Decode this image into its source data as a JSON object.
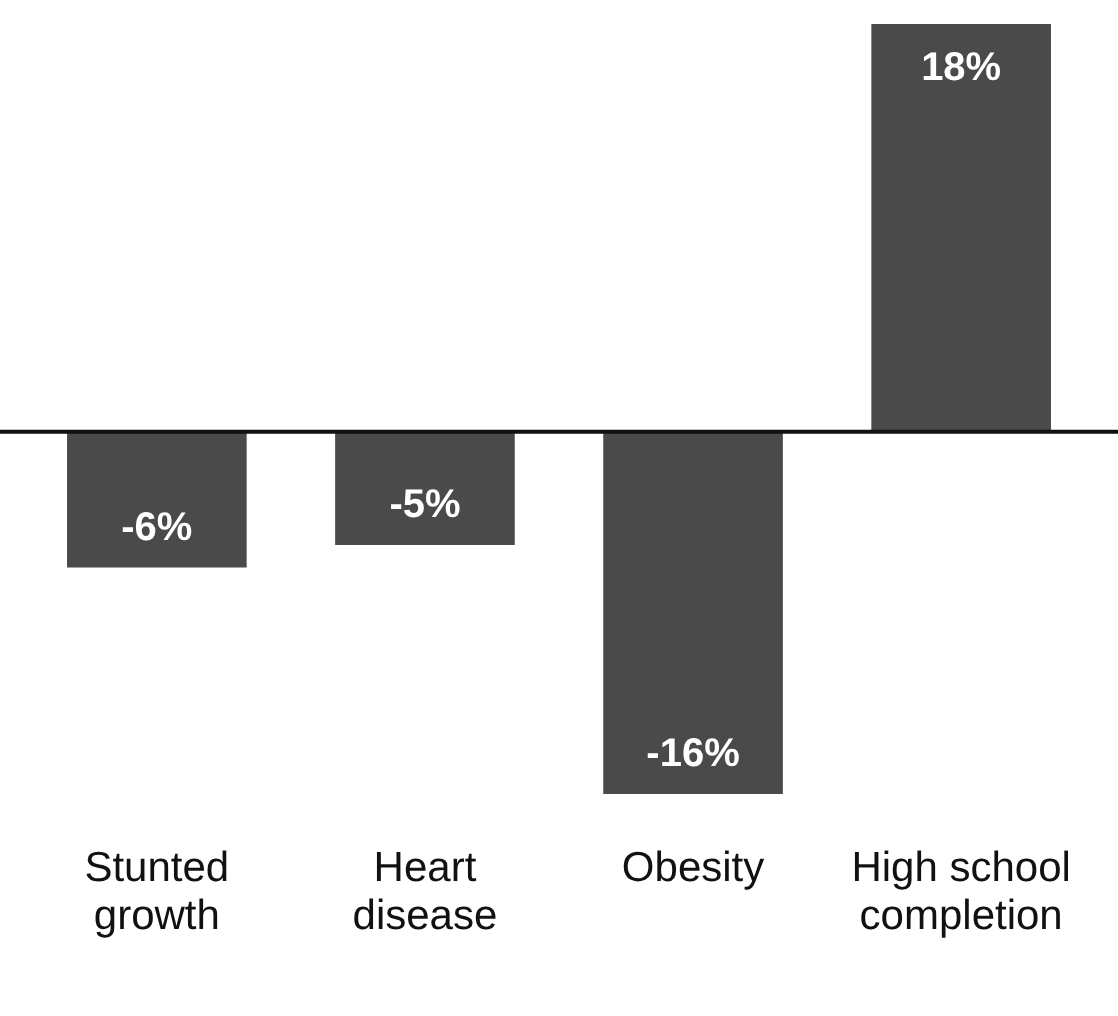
{
  "chart_data": {
    "type": "bar",
    "categories": [
      "Stunted growth",
      "Heart disease",
      "Obesity",
      "High school completion"
    ],
    "values": [
      -6,
      -5,
      -16,
      18
    ],
    "value_labels": [
      "-6%",
      "-5%",
      "-16%",
      "18%"
    ],
    "color": "#4a4a4a",
    "grid": false
  }
}
